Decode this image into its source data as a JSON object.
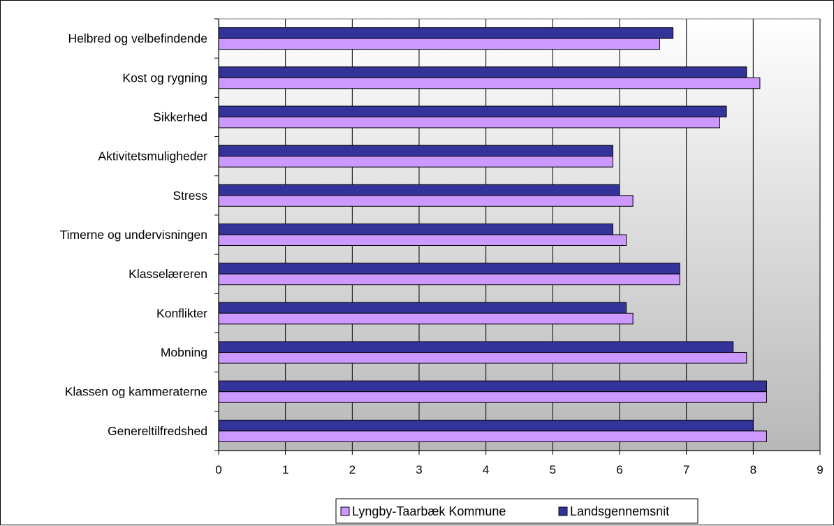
{
  "chart_data": {
    "type": "bar",
    "orientation": "horizontal",
    "categories": [
      "Helbred og velbefindende",
      "Kost og rygning",
      "Sikkerhed",
      "Aktivitetsmuligheder",
      "Stress",
      "Timerne og undervisningen",
      "Klasselæreren",
      "Konflikter",
      "Mobning",
      "Klassen og kammeraterne",
      "Genereltilfredshed"
    ],
    "series": [
      {
        "name": "Landsgennemsnit",
        "color": "#333399",
        "values": [
          6.8,
          7.9,
          7.6,
          5.9,
          6.0,
          5.9,
          6.9,
          6.1,
          7.7,
          8.2,
          8.0
        ]
      },
      {
        "name": "Lyngby-Taarbæk Kommune",
        "color": "#cc99ff",
        "values": [
          6.6,
          8.1,
          7.5,
          5.9,
          6.2,
          6.1,
          6.9,
          6.2,
          7.9,
          8.2,
          8.2
        ]
      }
    ],
    "xlim": [
      0,
      9
    ],
    "xticks": [
      "0",
      "1",
      "2",
      "3",
      "4",
      "5",
      "6",
      "7",
      "8",
      "9"
    ],
    "grid": "vertical",
    "legend_position": "bottom",
    "legend_order": [
      "Lyngby-Taarbæk Kommune",
      "Landsgennemsnit"
    ],
    "background": "gradient white-to-gray"
  }
}
